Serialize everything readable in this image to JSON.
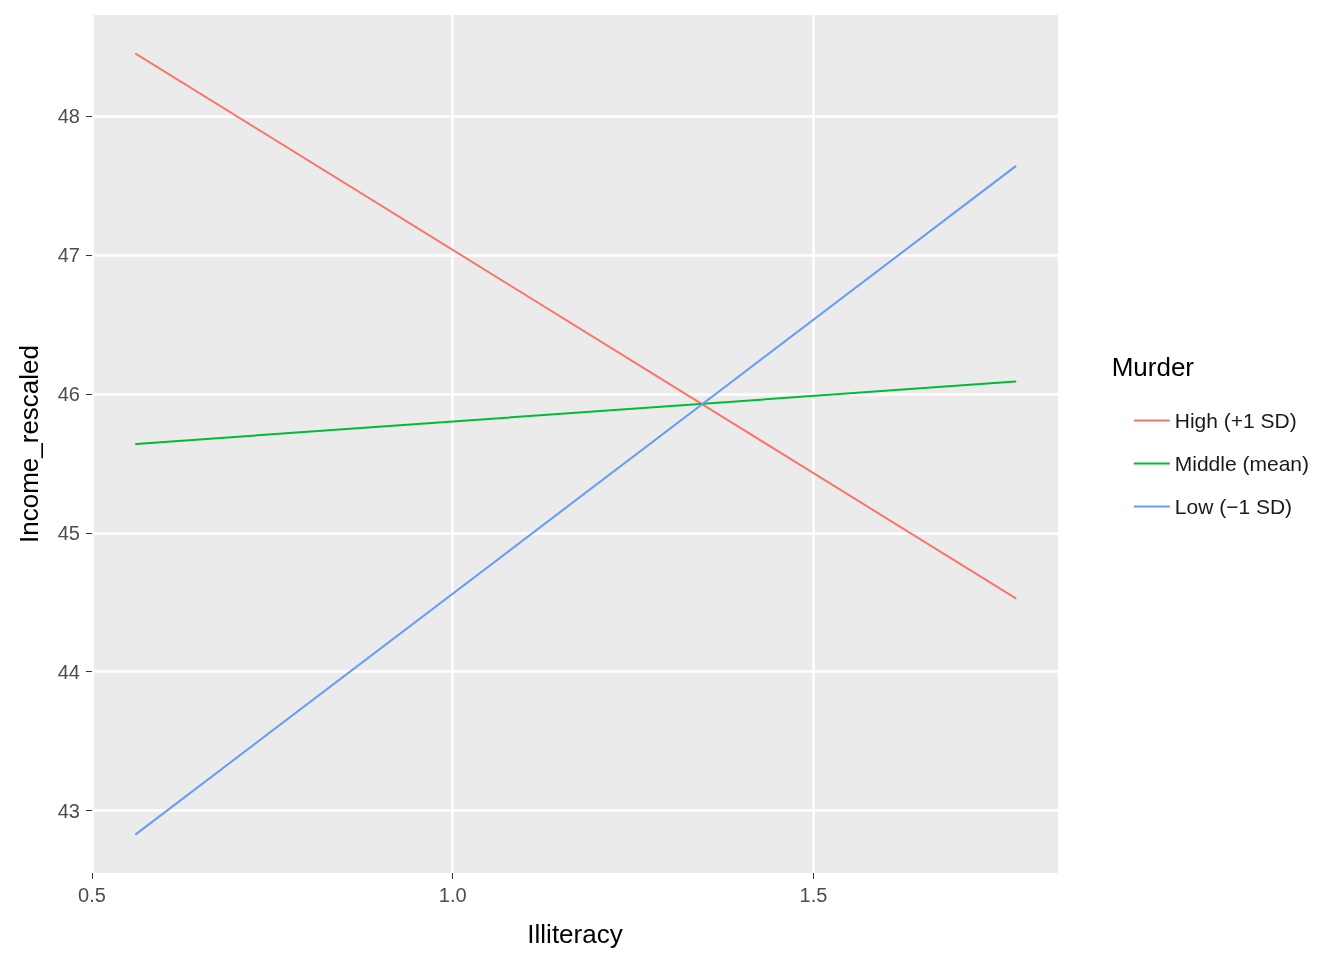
{
  "chart_data": {
    "type": "line",
    "xlabel": "Illiteracy",
    "ylabel": "Income_rescaled",
    "legend_title": "Murder",
    "legend": "right",
    "grid": true,
    "marker": "none",
    "line_style": "solid",
    "x": [
      0.561,
      1.78
    ],
    "series": [
      {
        "name": "High (+1 SD)",
        "color": "#f8766d",
        "values": [
          48.45,
          44.53
        ]
      },
      {
        "name": "Middle (mean)",
        "color": "#00ba38",
        "values": [
          45.64,
          46.09
        ]
      },
      {
        "name": "Low (−1 SD)",
        "color": "#619cff",
        "values": [
          42.83,
          47.64
        ]
      }
    ],
    "xlim": [
      0.5,
      1.839
    ],
    "xticks": [
      {
        "value": 0.5,
        "label": "0.5"
      },
      {
        "value": 1.0,
        "label": "1.0"
      },
      {
        "value": 1.5,
        "label": "1.5"
      }
    ],
    "ylim": [
      42.55,
      48.73
    ],
    "yticks": [
      43,
      44,
      45,
      46,
      47,
      48
    ]
  }
}
